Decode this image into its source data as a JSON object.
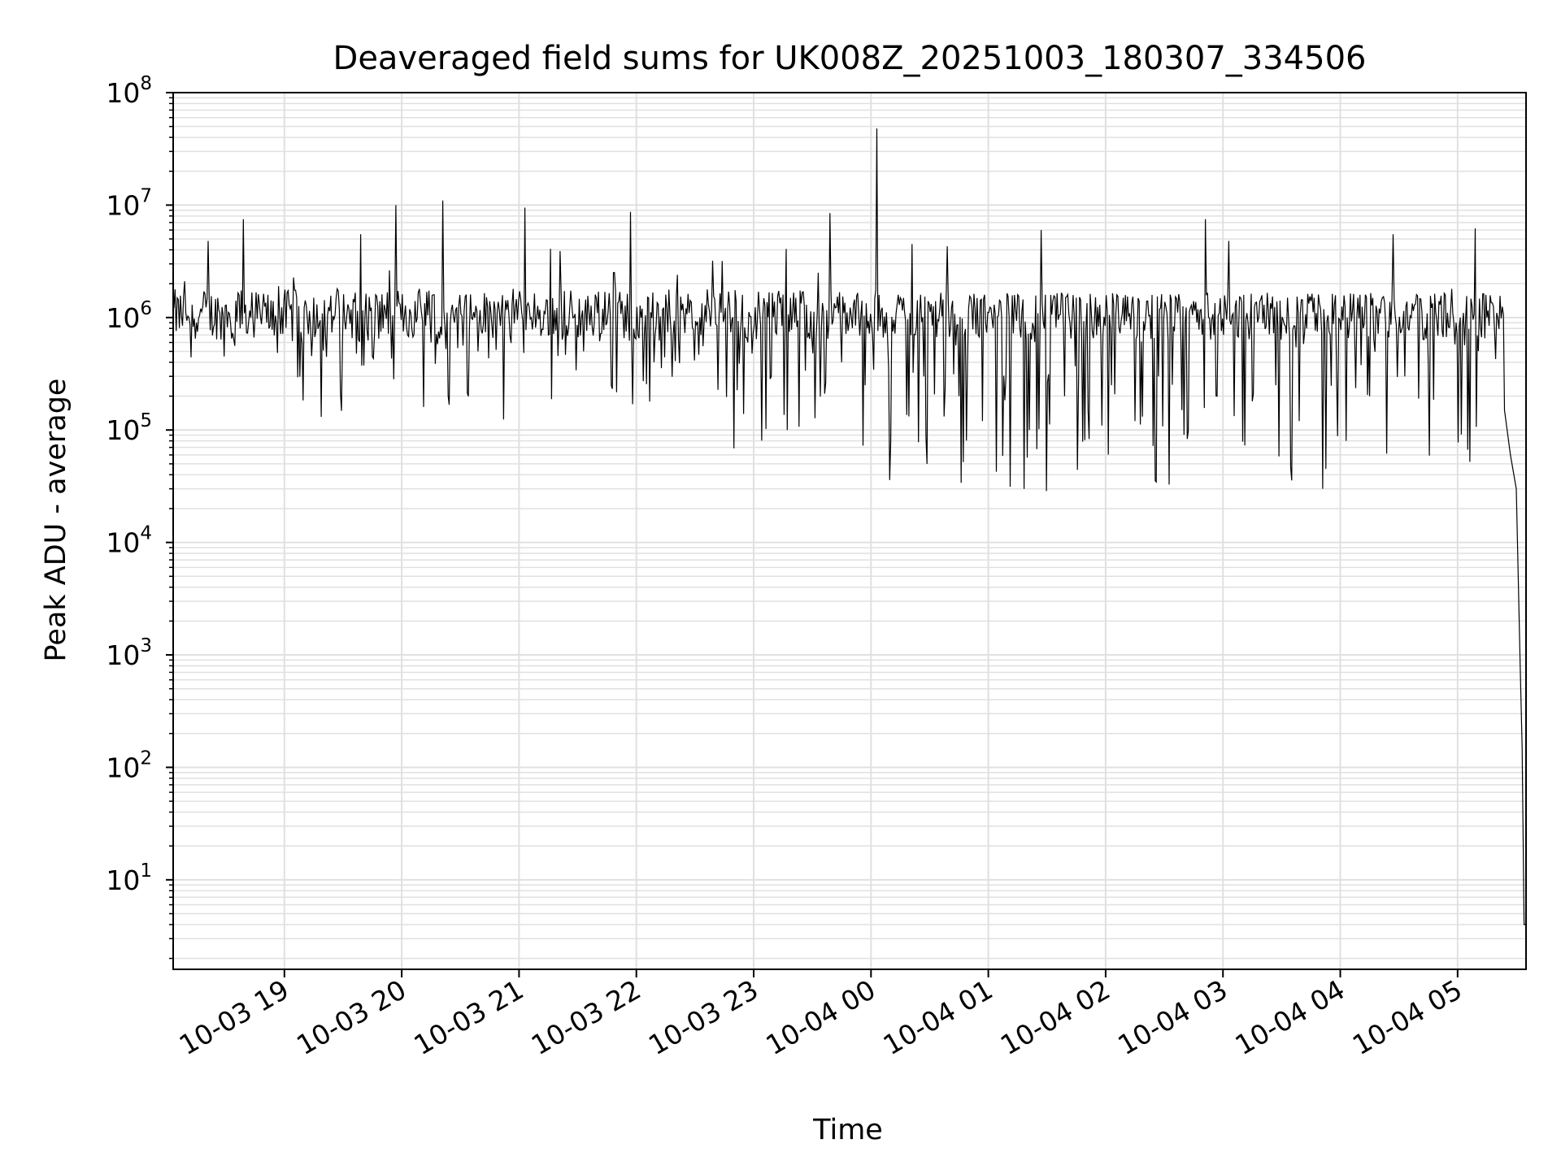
{
  "chart_data": {
    "type": "line",
    "title": "Deaveraged field sums for UK008Z_20251003_180307_334506",
    "xlabel": "Time",
    "ylabel": "Peak ADU - average",
    "y_scale": "log",
    "ylim": [
      1.6,
      100000000
    ],
    "xlim": [
      "2025-10-03 18:03:07",
      "2025-10-04 05:35:00"
    ],
    "grid": true,
    "x_ticks": [
      {
        "t": "2025-10-03 19:00",
        "label": "10-03 19"
      },
      {
        "t": "2025-10-03 20:00",
        "label": "10-03 20"
      },
      {
        "t": "2025-10-03 21:00",
        "label": "10-03 21"
      },
      {
        "t": "2025-10-03 22:00",
        "label": "10-03 22"
      },
      {
        "t": "2025-10-03 23:00",
        "label": "10-03 23"
      },
      {
        "t": "2025-10-04 00:00",
        "label": "10-04 00"
      },
      {
        "t": "2025-10-04 01:00",
        "label": "10-04 01"
      },
      {
        "t": "2025-10-04 02:00",
        "label": "10-04 02"
      },
      {
        "t": "2025-10-04 03:00",
        "label": "10-04 03"
      },
      {
        "t": "2025-10-04 04:00",
        "label": "10-04 04"
      },
      {
        "t": "2025-10-04 05:00",
        "label": "10-04 05"
      }
    ],
    "y_ticks": [
      {
        "exp": 1,
        "base": "10",
        "sup": "1"
      },
      {
        "exp": 2,
        "base": "10",
        "sup": "2"
      },
      {
        "exp": 3,
        "base": "10",
        "sup": "3"
      },
      {
        "exp": 4,
        "base": "10",
        "sup": "4"
      },
      {
        "exp": 5,
        "base": "10",
        "sup": "5"
      },
      {
        "exp": 6,
        "base": "10",
        "sup": "6"
      },
      {
        "exp": 7,
        "base": "10",
        "sup": "7"
      },
      {
        "exp": 8,
        "base": "10",
        "sup": "8"
      }
    ],
    "line_color": "#000000",
    "grid_color": "#e0e0e0",
    "series": [
      {
        "x": [
          "2025-10-03 18:03",
          "2025-10-03 18:09",
          "2025-10-03 18:15",
          "2025-10-03 18:21",
          "2025-10-03 18:27",
          "2025-10-03 18:33",
          "2025-10-03 18:39",
          "2025-10-03 18:45",
          "2025-10-03 18:51",
          "2025-10-03 18:57",
          "2025-10-03 19:03",
          "2025-10-03 19:09",
          "2025-10-03 19:15",
          "2025-10-03 19:21",
          "2025-10-03 19:27",
          "2025-10-03 19:33",
          "2025-10-03 19:39",
          "2025-10-03 19:45",
          "2025-10-03 19:51",
          "2025-10-03 19:57",
          "2025-10-03 20:03",
          "2025-10-03 20:09",
          "2025-10-03 20:15",
          "2025-10-03 20:21",
          "2025-10-03 20:27",
          "2025-10-03 20:33",
          "2025-10-03 20:39",
          "2025-10-03 20:45",
          "2025-10-03 20:51",
          "2025-10-03 20:57",
          "2025-10-03 21:03",
          "2025-10-03 21:09",
          "2025-10-03 21:15",
          "2025-10-03 21:21",
          "2025-10-03 21:27",
          "2025-10-03 21:33",
          "2025-10-03 21:39",
          "2025-10-03 21:45",
          "2025-10-03 21:51",
          "2025-10-03 21:57",
          "2025-10-03 22:03",
          "2025-10-03 22:09",
          "2025-10-03 22:15",
          "2025-10-03 22:21",
          "2025-10-03 22:27",
          "2025-10-03 22:33",
          "2025-10-03 22:39",
          "2025-10-03 22:45",
          "2025-10-03 22:51",
          "2025-10-03 22:57",
          "2025-10-03 23:03",
          "2025-10-03 23:09",
          "2025-10-03 23:15",
          "2025-10-03 23:21",
          "2025-10-03 23:27",
          "2025-10-03 23:33",
          "2025-10-03 23:39",
          "2025-10-03 23:45",
          "2025-10-03 23:51",
          "2025-10-03 23:57",
          "2025-10-04 00:03",
          "2025-10-04 00:09",
          "2025-10-04 00:15",
          "2025-10-04 00:21",
          "2025-10-04 00:27",
          "2025-10-04 00:33",
          "2025-10-04 00:39",
          "2025-10-04 00:45",
          "2025-10-04 00:51",
          "2025-10-04 00:57",
          "2025-10-04 01:03",
          "2025-10-04 01:09",
          "2025-10-04 01:15",
          "2025-10-04 01:21",
          "2025-10-04 01:27",
          "2025-10-04 01:33",
          "2025-10-04 01:39",
          "2025-10-04 01:45",
          "2025-10-04 01:51",
          "2025-10-04 01:57",
          "2025-10-04 02:03",
          "2025-10-04 02:09",
          "2025-10-04 02:15",
          "2025-10-04 02:21",
          "2025-10-04 02:27",
          "2025-10-04 02:33",
          "2025-10-04 02:39",
          "2025-10-04 02:45",
          "2025-10-04 02:51",
          "2025-10-04 02:57",
          "2025-10-04 03:03",
          "2025-10-04 03:09",
          "2025-10-04 03:15",
          "2025-10-04 03:21",
          "2025-10-04 03:27",
          "2025-10-04 03:33",
          "2025-10-04 03:39",
          "2025-10-04 03:45",
          "2025-10-04 03:51",
          "2025-10-04 03:57",
          "2025-10-04 04:03",
          "2025-10-04 04:09",
          "2025-10-04 04:15",
          "2025-10-04 04:21",
          "2025-10-04 04:27",
          "2025-10-04 04:33",
          "2025-10-04 04:39",
          "2025-10-04 04:45",
          "2025-10-04 04:51",
          "2025-10-04 04:57",
          "2025-10-04 05:03",
          "2025-10-04 05:09",
          "2025-10-04 05:15",
          "2025-10-04 05:20",
          "2025-10-04 05:24",
          "2025-10-04 05:27",
          "2025-10-04 05:30",
          "2025-10-04 05:32",
          "2025-10-04 05:33",
          "2025-10-04 05:34",
          "2025-10-04 05:35"
        ],
        "y": [
          1300000,
          2100000,
          900000,
          4800000,
          1100000,
          650000,
          7500000,
          1000000,
          900000,
          1900000,
          1200000,
          600000,
          1500000,
          700000,
          1800000,
          1200000,
          5500000,
          450000,
          1300000,
          10000000,
          700000,
          1800000,
          600000,
          11000000,
          900000,
          1600000,
          500000,
          1400000,
          1200000,
          1800000,
          9500000,
          1000000,
          700000,
          3900000,
          1300000,
          500000,
          1600000,
          900000,
          1400000,
          8700000,
          1200000,
          400000,
          1600000,
          2400000,
          1100000,
          700000,
          3200000,
          1000000,
          1400000,
          600000,
          1200000,
          300000,
          1600000,
          900000,
          1300000,
          2500000,
          8500000,
          400000,
          1300000,
          250000,
          48000000,
          350000,
          1500000,
          4500000,
          300000,
          1400000,
          4300000,
          200000,
          1500000,
          120000,
          1300000,
          300000,
          1600000,
          100000,
          6000000,
          1400000,
          200000,
          1500000,
          150000,
          1300000,
          250000,
          1500000,
          120000,
          1400000,
          300000,
          1600000,
          150000,
          1400000,
          7500000,
          200000,
          4800000,
          1500000,
          180000,
          1300000,
          250000,
          1500000,
          120000,
          1400000,
          30000,
          1300000,
          80000,
          1500000,
          200000,
          1400000,
          5500000,
          300000,
          1600000,
          400000,
          1300000,
          1800000,
          1100000,
          6200000,
          1000000,
          1100000,
          150000,
          60000,
          30000,
          800,
          150,
          4,
          4
        ]
      }
    ]
  }
}
